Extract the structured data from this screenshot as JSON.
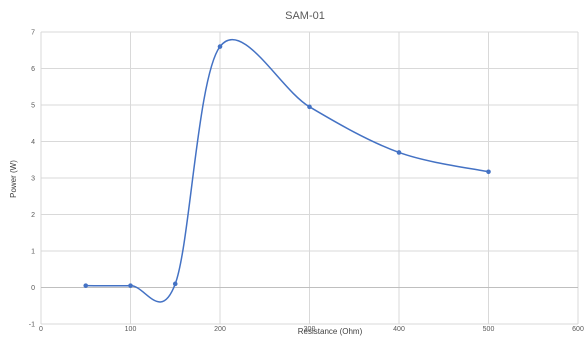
{
  "chart_data": {
    "type": "scatter",
    "title": "SAM-01",
    "xlabel": "Resistance (Ohm)",
    "ylabel": "Power (W)",
    "xlim": [
      0,
      600
    ],
    "ylim": [
      -1,
      7
    ],
    "x_ticks": [
      0,
      100,
      200,
      300,
      400,
      500,
      600
    ],
    "y_ticks": [
      -1,
      0,
      1,
      2,
      3,
      4,
      5,
      6,
      7
    ],
    "grid": true,
    "line_style": "smooth",
    "series": [
      {
        "x": [
          50,
          100,
          150,
          200,
          300,
          400,
          500
        ],
        "y": [
          0.05,
          0.05,
          0.1,
          6.6,
          4.95,
          3.7,
          3.17
        ],
        "color": "#4472c4"
      }
    ]
  }
}
